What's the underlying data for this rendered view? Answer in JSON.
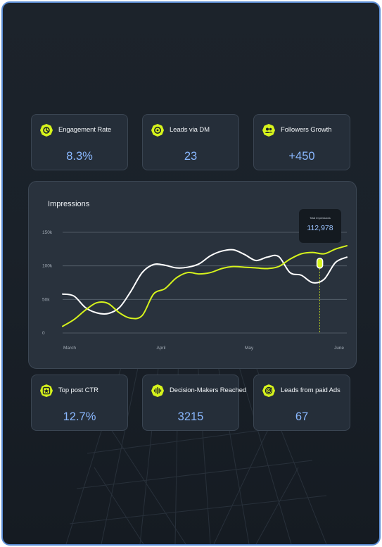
{
  "colors": {
    "accent": "#d6f31c",
    "value_text": "#8ab8ff",
    "card_bg": "#252e39",
    "panel_bg": "#29323d"
  },
  "top_cards": [
    {
      "title": "Engagement Rate",
      "value": "8.3%",
      "icon": "engagement-icon"
    },
    {
      "title": "Leads via DM",
      "value": "23",
      "icon": "dm-icon"
    },
    {
      "title": "Followers Growth",
      "value": "+450",
      "icon": "followers-icon"
    }
  ],
  "bottom_cards": [
    {
      "title": "Top post CTR",
      "value": "12.7%",
      "icon": "star-icon"
    },
    {
      "title": "Decision-Makers Reached",
      "value": "3215",
      "icon": "signal-icon"
    },
    {
      "title": "Leads from paid Ads",
      "value": "67",
      "icon": "target-icon"
    }
  ],
  "chart_data": {
    "type": "line",
    "title": "Impressions",
    "y_ticks": [
      "150k",
      "100k",
      "50k",
      "0"
    ],
    "x_ticks": [
      "March",
      "April",
      "May",
      "June"
    ],
    "ylim": [
      0,
      150000
    ],
    "grid": true,
    "series": [
      {
        "color": "#ffffff",
        "x": [
          0,
          4,
          8,
          12,
          16,
          20,
          24,
          28,
          32,
          36,
          40,
          44,
          48,
          52,
          56,
          60,
          64,
          68,
          72,
          76,
          80,
          84,
          88,
          92,
          96,
          100
        ],
        "y": [
          58000,
          55000,
          38000,
          30000,
          29000,
          38000,
          62000,
          90000,
          102000,
          101000,
          97000,
          98000,
          103000,
          115000,
          122000,
          124000,
          117000,
          108000,
          113000,
          114000,
          90000,
          86000,
          75000,
          80000,
          105000,
          113000
        ]
      },
      {
        "color": "#d6f31c",
        "x": [
          0,
          4,
          8,
          12,
          16,
          20,
          24,
          28,
          32,
          36,
          40,
          44,
          48,
          52,
          56,
          60,
          64,
          68,
          72,
          76,
          80,
          84,
          88,
          92,
          96,
          100
        ],
        "y": [
          10000,
          20000,
          34000,
          45000,
          44000,
          30000,
          22000,
          26000,
          58000,
          66000,
          82000,
          90000,
          88000,
          90000,
          96000,
          99000,
          98000,
          97000,
          96000,
          99000,
          110000,
          118000,
          120000,
          118000,
          125000,
          130000
        ]
      }
    ],
    "tooltip": {
      "label": "Total Impressions",
      "value": "112,978"
    }
  }
}
